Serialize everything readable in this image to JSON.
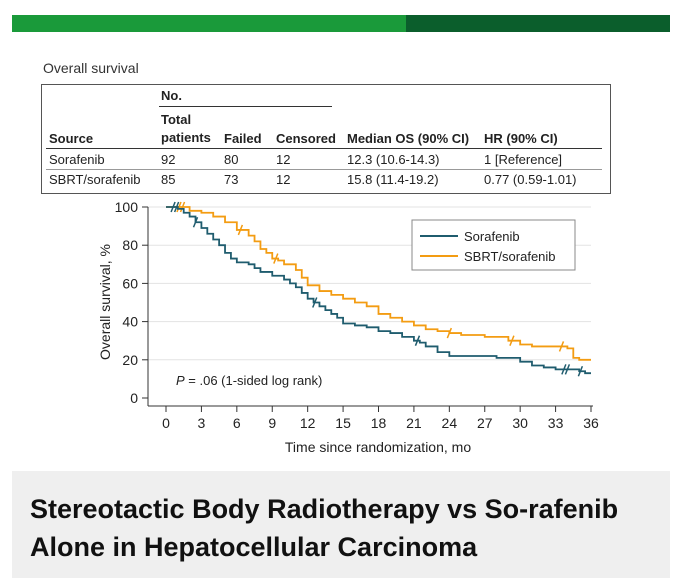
{
  "section_title": "Overall survival",
  "table": {
    "group_header": "No.",
    "headers": {
      "source": "Source",
      "total_line1": "Total",
      "total_line2": "patients",
      "failed": "Failed",
      "censored": "Censored",
      "median": "Median OS (90% CI)",
      "hr": "HR (90% CI)"
    },
    "rows": [
      {
        "source": "Sorafenib",
        "total": "92",
        "failed": "80",
        "censored": "12",
        "median": "12.3 (10.6-14.3)",
        "hr": "1 [Reference]"
      },
      {
        "source": "SBRT/sorafenib",
        "total": "85",
        "failed": "73",
        "censored": "12",
        "median": "15.8 (11.4-19.2)",
        "hr": "0.77 (0.59-1.01)"
      }
    ]
  },
  "chart_data": {
    "type": "line",
    "xlabel": "Time since randomization, mo",
    "ylabel": "Overall survival, %",
    "xlim": [
      0,
      36
    ],
    "ylim": [
      0,
      100
    ],
    "xticks": [
      0,
      3,
      6,
      9,
      12,
      15,
      18,
      21,
      24,
      27,
      30,
      33,
      36
    ],
    "yticks": [
      0,
      20,
      40,
      60,
      80,
      100
    ],
    "annotation": "P = .06 (1-sided log rank)",
    "annotation_p": "P",
    "annotation_rest": " = .06 (1-sided log rank)",
    "legend_position": "top-right",
    "series": [
      {
        "name": "Sorafenib",
        "color": "#1f5c6e",
        "points": [
          [
            0,
            100
          ],
          [
            1,
            99
          ],
          [
            1.5,
            97
          ],
          [
            2,
            95
          ],
          [
            2.5,
            92
          ],
          [
            3,
            89
          ],
          [
            3.5,
            86
          ],
          [
            4,
            83
          ],
          [
            4.5,
            80
          ],
          [
            5,
            76
          ],
          [
            5.5,
            73
          ],
          [
            6,
            71
          ],
          [
            7,
            70
          ],
          [
            7.5,
            68
          ],
          [
            8,
            66
          ],
          [
            9,
            64
          ],
          [
            10,
            62
          ],
          [
            10.5,
            60
          ],
          [
            11,
            58
          ],
          [
            11.5,
            55
          ],
          [
            12,
            52
          ],
          [
            12.5,
            50
          ],
          [
            13,
            48
          ],
          [
            13.5,
            46
          ],
          [
            14,
            44
          ],
          [
            14.5,
            42
          ],
          [
            15,
            39
          ],
          [
            16,
            38
          ],
          [
            17,
            37
          ],
          [
            18,
            35
          ],
          [
            19,
            34
          ],
          [
            20,
            32
          ],
          [
            21,
            30
          ],
          [
            21.5,
            29
          ],
          [
            22,
            27
          ],
          [
            23,
            24
          ],
          [
            24,
            22
          ],
          [
            26,
            22
          ],
          [
            28,
            21
          ],
          [
            29,
            21
          ],
          [
            30,
            19
          ],
          [
            31,
            17
          ],
          [
            32,
            16
          ],
          [
            33,
            15
          ],
          [
            34,
            15
          ],
          [
            35,
            14
          ],
          [
            35.5,
            13
          ],
          [
            36,
            13
          ]
        ],
        "censor_x": [
          0.6,
          0.9,
          2.5,
          12.6,
          21.3,
          33.7,
          34.0,
          35.1
        ]
      },
      {
        "name": "SBRT/sorafenib",
        "color": "#f39c12",
        "points": [
          [
            0,
            100
          ],
          [
            1.5,
            100
          ],
          [
            2,
            98
          ],
          [
            3,
            97
          ],
          [
            4,
            95
          ],
          [
            5,
            92
          ],
          [
            6,
            88
          ],
          [
            7,
            85
          ],
          [
            7.5,
            82
          ],
          [
            8,
            78
          ],
          [
            8.5,
            76
          ],
          [
            9,
            73
          ],
          [
            9.5,
            72
          ],
          [
            10,
            70
          ],
          [
            11,
            67
          ],
          [
            11.5,
            63
          ],
          [
            12,
            59
          ],
          [
            13,
            56
          ],
          [
            14,
            54
          ],
          [
            15,
            52
          ],
          [
            16,
            50
          ],
          [
            17,
            48
          ],
          [
            18,
            44
          ],
          [
            19,
            42
          ],
          [
            20,
            40
          ],
          [
            21,
            38
          ],
          [
            22,
            36
          ],
          [
            23,
            35
          ],
          [
            24,
            34
          ],
          [
            25,
            33
          ],
          [
            27,
            32
          ],
          [
            29,
            30
          ],
          [
            30,
            28
          ],
          [
            31,
            27
          ],
          [
            32,
            27
          ],
          [
            33,
            27
          ],
          [
            34,
            26
          ],
          [
            34.5,
            21
          ],
          [
            35,
            20
          ],
          [
            36,
            20
          ]
        ],
        "censor_x": [
          1.1,
          1.4,
          6.3,
          9.3,
          24.0,
          29.3,
          33.5
        ]
      }
    ]
  },
  "footer_title": "Stereotactic Body Radiotherapy vs So-rafenib Alone in Hepatocellular Carcinoma",
  "colors": {
    "bar_green": "#1a9a3a",
    "bar_dark_green": "#0b5e2c",
    "footer_bg": "#efefef"
  }
}
